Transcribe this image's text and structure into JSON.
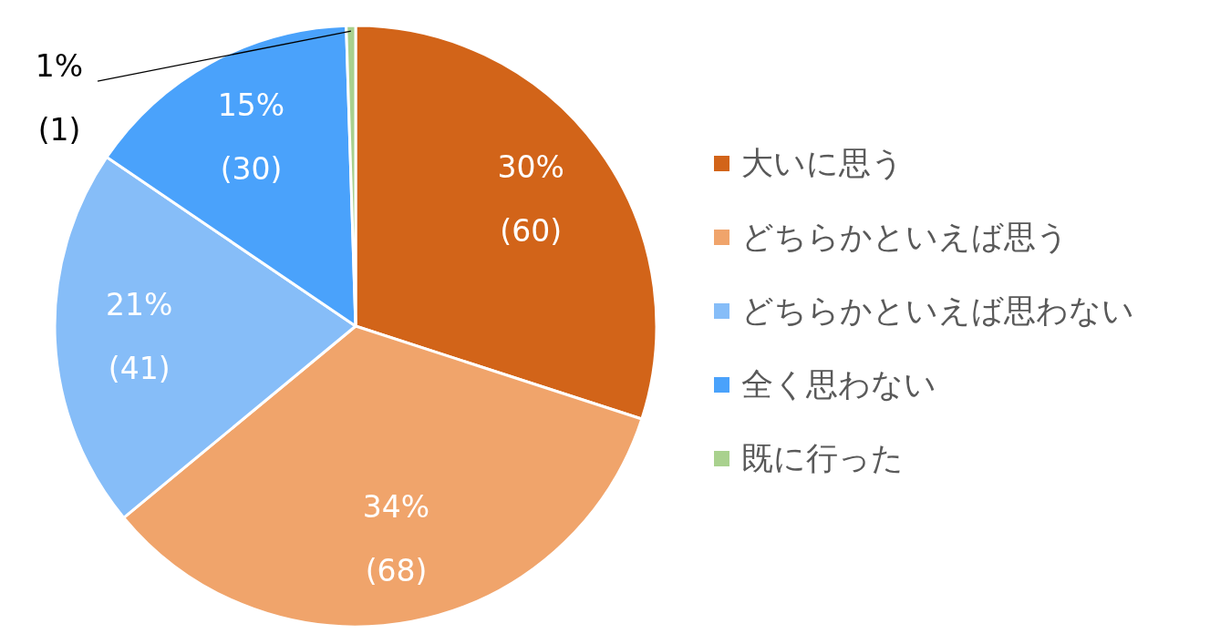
{
  "chart_data": {
    "type": "pie",
    "categories": [
      "大いに思う",
      "どちらかといえば思う",
      "どちらかといえば思わない",
      "全く思わない",
      "既に行った"
    ],
    "values": [
      60,
      68,
      41,
      30,
      1
    ],
    "colors": [
      "#d26419",
      "#f0a46b",
      "#86bdf8",
      "#4aa2fb",
      "#a9d18e"
    ],
    "value_labels": [
      "30%\n(60)",
      "34%\n(68)",
      "21%\n(41)",
      "15%\n(30)",
      "1%\n(1)"
    ],
    "legend": "right"
  }
}
